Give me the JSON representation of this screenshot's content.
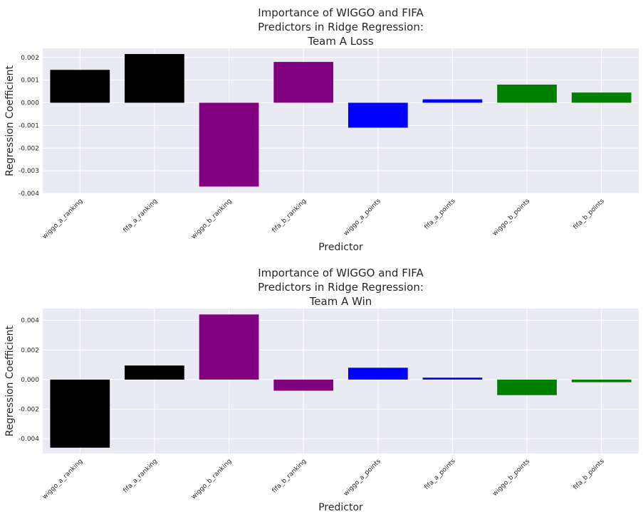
{
  "chart_data": [
    {
      "type": "bar",
      "title": "Importance of WIGGO and FIFA\nPredictors in Ridge Regression:\nTeam A Loss",
      "xlabel": "Predictor",
      "ylabel": "Regression Coefficient",
      "categories": [
        "wiggo_a_ranking",
        "fifa_a_ranking",
        "wiggo_b_ranking",
        "fifa_b_ranking",
        "wiggo_a_points",
        "fifa_a_points",
        "wiggo_b_points",
        "fifa_b_points"
      ],
      "values": [
        0.00145,
        0.00215,
        -0.0037,
        0.0018,
        -0.0011,
        0.00015,
        0.0008,
        0.00045
      ],
      "colors": [
        "#000000",
        "#000000",
        "#800080",
        "#800080",
        "#0000ff",
        "#0000ff",
        "#008000",
        "#008000"
      ],
      "ylim": [
        -0.004,
        0.0024
      ],
      "yticks": [
        0.002,
        0.001,
        0.0,
        -0.001,
        -0.002,
        -0.003,
        -0.004
      ],
      "ytick_labels": [
        "0.002",
        "0.001",
        "0.000",
        "-0.001",
        "-0.002",
        "-0.003",
        "-0.004"
      ],
      "grid": true
    },
    {
      "type": "bar",
      "title": "Importance of WIGGO and FIFA\nPredictors in Ridge Regression:\nTeam A Win",
      "xlabel": "Predictor",
      "ylabel": "Regression Coefficient",
      "categories": [
        "wiggo_a_ranking",
        "fifa_a_ranking",
        "wiggo_b_ranking",
        "fifa_b_ranking",
        "wiggo_a_points",
        "fifa_a_points",
        "wiggo_b_points",
        "fifa_b_points"
      ],
      "values": [
        -0.0046,
        0.00095,
        0.0044,
        -0.00075,
        0.0008,
        0.00013,
        -0.00105,
        -0.00018
      ],
      "colors": [
        "#000000",
        "#000000",
        "#800080",
        "#800080",
        "#0000ff",
        "#0000ff",
        "#008000",
        "#008000"
      ],
      "ylim": [
        -0.005,
        0.0048
      ],
      "yticks": [
        0.004,
        0.002,
        0.0,
        -0.002,
        -0.004
      ],
      "ytick_labels": [
        "0.004",
        "0.002",
        "0.000",
        "-0.002",
        "-0.004"
      ],
      "grid": true
    }
  ]
}
